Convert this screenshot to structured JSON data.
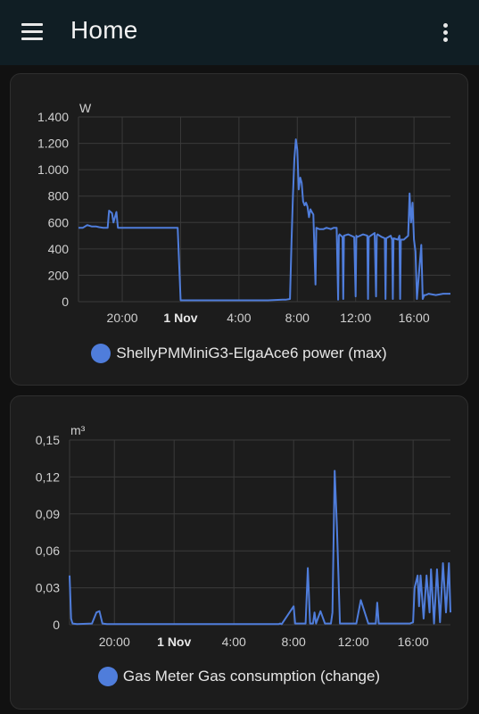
{
  "header": {
    "title": "Home",
    "menu_icon": "hamburger-menu-icon",
    "more_icon": "more-vertical-icon"
  },
  "colors": {
    "series": "#4f7ddb",
    "card_bg": "#1c1c1c",
    "header_bg": "#101e24",
    "grid": "#3a3a3a"
  },
  "chart_data": [
    {
      "type": "line",
      "unit": "W",
      "ylim": [
        0,
        1400
      ],
      "yticks": [
        0,
        200,
        400,
        600,
        800,
        1000,
        1200,
        1400
      ],
      "ytick_labels": [
        "0",
        "200",
        "400",
        "600",
        "800",
        "1.000",
        "1.200",
        "1.400"
      ],
      "xlim_hours": [
        -7,
        18.5
      ],
      "xticks": [
        -4,
        0,
        4,
        8,
        12,
        16
      ],
      "xtick_labels": [
        "20:00",
        "1 Nov",
        "4:00",
        "8:00",
        "12:00",
        "16:00"
      ],
      "grid": true,
      "legend_position": "bottom-center",
      "series": [
        {
          "name": "ShellyPMMiniG3-ElgaAce6 power (max)",
          "x": [
            -7,
            -6.7,
            -6.4,
            -6.1,
            -5.8,
            -5.6,
            -5.3,
            -5.0,
            -4.9,
            -4.7,
            -4.6,
            -4.4,
            -4.3,
            -4.0,
            -3.0,
            -2.0,
            -1.0,
            -0.2,
            0.0,
            1.0,
            2.0,
            3.0,
            4.0,
            5.0,
            6.0,
            7.0,
            7.2,
            7.5,
            7.6,
            7.7,
            7.8,
            7.9,
            8.0,
            8.1,
            8.2,
            8.3,
            8.4,
            8.5,
            8.6,
            8.7,
            8.8,
            8.9,
            9.0,
            9.1,
            9.2,
            9.25,
            9.3,
            9.5,
            9.8,
            10.0,
            10.3,
            10.5,
            10.7,
            10.8,
            10.85,
            10.9,
            11.1,
            11.15,
            11.2,
            11.5,
            11.9,
            12.0,
            12.05,
            12.1,
            12.5,
            12.8,
            12.85,
            12.9,
            13.3,
            13.4,
            13.45,
            13.5,
            13.8,
            14.0,
            14.05,
            14.1,
            14.4,
            14.5,
            14.55,
            14.6,
            14.9,
            15.0,
            15.05,
            15.1,
            15.3,
            15.6,
            15.7,
            15.8,
            15.9,
            16.0,
            16.1,
            16.2,
            16.5,
            16.6,
            16.7,
            16.8,
            17.0,
            17.5,
            18.0,
            18.5
          ],
          "y": [
            560,
            560,
            580,
            570,
            570,
            565,
            560,
            560,
            690,
            670,
            600,
            680,
            560,
            560,
            560,
            560,
            560,
            560,
            10,
            10,
            10,
            10,
            10,
            10,
            10,
            15,
            15,
            20,
            450,
            800,
            1080,
            1230,
            1150,
            850,
            940,
            900,
            760,
            730,
            750,
            720,
            640,
            700,
            680,
            660,
            300,
            130,
            560,
            550,
            550,
            560,
            550,
            560,
            560,
            15,
            500,
            510,
            490,
            20,
            500,
            510,
            490,
            40,
            500,
            490,
            510,
            500,
            20,
            490,
            520,
            40,
            500,
            510,
            490,
            480,
            20,
            480,
            500,
            470,
            20,
            480,
            470,
            500,
            20,
            470,
            470,
            500,
            820,
            600,
            750,
            470,
            380,
            20,
            430,
            20,
            50,
            50,
            60,
            50,
            60,
            60
          ]
        }
      ]
    },
    {
      "type": "line",
      "unit": "m³",
      "ylim": [
        0,
        0.15
      ],
      "yticks": [
        0,
        0.03,
        0.06,
        0.09,
        0.12,
        0.15
      ],
      "ytick_labels": [
        "0",
        "0,03",
        "0,06",
        "0,09",
        "0,12",
        "0,15"
      ],
      "xlim_hours": [
        -7,
        18.5
      ],
      "xticks": [
        -4,
        0,
        4,
        8,
        12,
        16
      ],
      "xtick_labels": [
        "20:00",
        "1 Nov",
        "4:00",
        "8:00",
        "12:00",
        "16:00"
      ],
      "grid": true,
      "legend_position": "bottom-center",
      "series": [
        {
          "name": "Gas Meter Gas consumption (change)",
          "x": [
            -7,
            -6.9,
            -6.8,
            -6.5,
            -5.5,
            -5.2,
            -5.0,
            -4.8,
            -4.5,
            -2,
            0,
            2,
            4,
            6,
            7.0,
            7.1,
            7.2,
            8.0,
            8.1,
            8.2,
            8.8,
            8.95,
            9.1,
            9.3,
            9.4,
            9.5,
            9.8,
            10.1,
            10.2,
            10.5,
            10.6,
            10.75,
            10.9,
            11.1,
            11.5,
            11.8,
            12.0,
            12.2,
            12.5,
            13.0,
            13.5,
            13.6,
            13.7,
            14.0,
            15.0,
            15.8,
            16.0,
            16.1,
            16.3,
            16.4,
            16.5,
            16.7,
            16.9,
            17.1,
            17.2,
            17.4,
            17.6,
            17.8,
            18.0,
            18.2,
            18.4,
            18.5
          ],
          "y": [
            0.04,
            0.005,
            0.001,
            0.0005,
            0.001,
            0.01,
            0.011,
            0.001,
            0.0005,
            0.0005,
            0.0005,
            0.0005,
            0.0005,
            0.0005,
            0.0005,
            0.001,
            0.0005,
            0.015,
            0.001,
            0.001,
            0.001,
            0.046,
            0.001,
            0.001,
            0.01,
            0.001,
            0.011,
            0.001,
            0.001,
            0.001,
            0.01,
            0.125,
            0.08,
            0.001,
            0.001,
            0.001,
            0.001,
            0.001,
            0.02,
            0.001,
            0.001,
            0.018,
            0.001,
            0.001,
            0.001,
            0.001,
            0.002,
            0.03,
            0.04,
            0.015,
            0.04,
            0.005,
            0.04,
            0.01,
            0.045,
            0.001,
            0.045,
            0.002,
            0.05,
            0.01,
            0.05,
            0.01
          ]
        }
      ]
    }
  ]
}
